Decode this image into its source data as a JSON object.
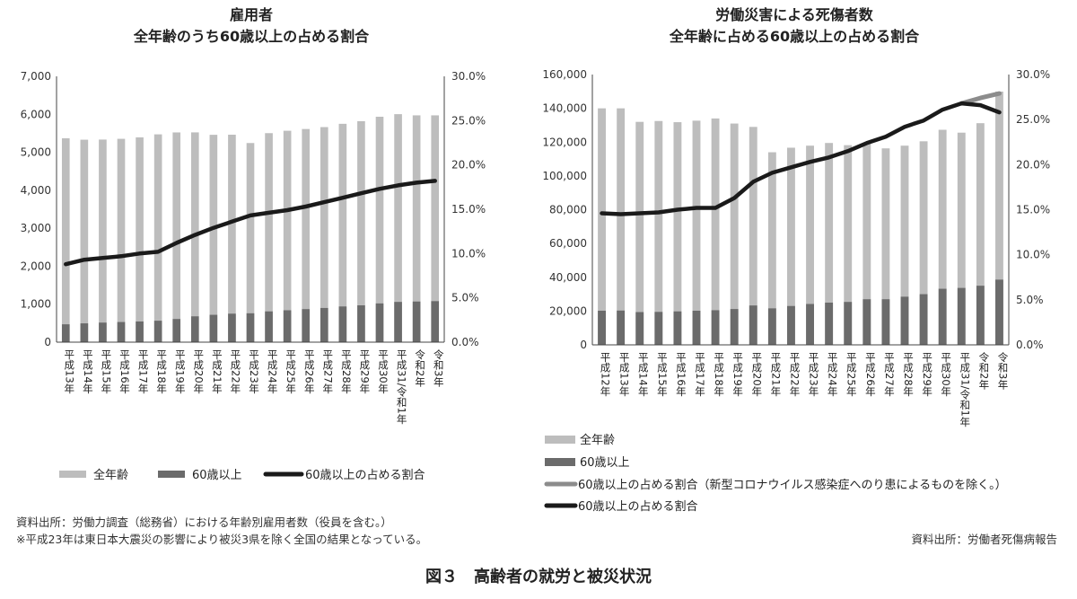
{
  "chart_data": [
    {
      "type": "bar",
      "title": "雇用者",
      "subtitle": "全年齢のうち60歳以上の占める割合",
      "categories": [
        "平成13年",
        "平成14年",
        "平成15年",
        "平成16年",
        "平成17年",
        "平成18年",
        "平成19年",
        "平成20年",
        "平成21年",
        "平成22年",
        "平成23年",
        "平成24年",
        "平成25年",
        "平成26年",
        "平成27年",
        "平成28年",
        "平成29年",
        "平成30年",
        "平成31/令和1年",
        "令和2年",
        "令和3年"
      ],
      "left_ylim": [
        0,
        7000
      ],
      "left_ticks": [
        "0",
        "1,000",
        "2,000",
        "3,000",
        "4,000",
        "5,000",
        "6,000",
        "7,000"
      ],
      "right_ylim": [
        0,
        30
      ],
      "right_ticks": [
        "0.0%",
        "5.0%",
        "10.0%",
        "15.0%",
        "20.0%",
        "25.0%",
        "30.0%"
      ],
      "series": [
        {
          "name": "全年齢",
          "kind": "bar",
          "color": "#bdbdbd",
          "values": [
            5369,
            5331,
            5335,
            5355,
            5393,
            5472,
            5523,
            5524,
            5460,
            5463,
            5244,
            5504,
            5567,
            5613,
            5663,
            5750,
            5819,
            5936,
            6004,
            5973,
            5973
          ]
        },
        {
          "name": "60歳以上",
          "kind": "bar",
          "color": "#6b6b6b",
          "values": [
            470,
            495,
            515,
            530,
            545,
            565,
            610,
            680,
            720,
            750,
            760,
            810,
            840,
            870,
            900,
            940,
            970,
            1020,
            1060,
            1070,
            1080
          ]
        },
        {
          "name": "60歳以上の占める割合",
          "kind": "line",
          "axis": "right",
          "color": "#1a1a1a",
          "values": [
            8.8,
            9.3,
            9.5,
            9.7,
            10.0,
            10.2,
            11.2,
            12.1,
            12.9,
            13.6,
            14.3,
            14.6,
            14.9,
            15.3,
            15.8,
            16.3,
            16.8,
            17.3,
            17.7,
            18.0,
            18.2
          ]
        }
      ],
      "legend": [
        "全年齢",
        "60歳以上",
        "60歳以上の占める割合"
      ],
      "source": "資料出所：労働力調査（総務省）における年齢別雇用者数（役員を含む。）",
      "footnote": "※平成23年は東日本大震災の影響により被災3県を除く全国の結果となっている。"
    },
    {
      "type": "bar",
      "title": "労働災害による死傷者数",
      "subtitle": "全年齢に占める60歳以上の占める割合",
      "categories": [
        "平成12年",
        "平成13年",
        "平成14年",
        "平成15年",
        "平成16年",
        "平成17年",
        "平成18年",
        "平成19年",
        "平成20年",
        "平成21年",
        "平成22年",
        "平成23年",
        "平成24年",
        "平成25年",
        "平成26年",
        "平成27年",
        "平成28年",
        "平成29年",
        "平成30年",
        "平成31/令和1年",
        "令和2年",
        "令和3年"
      ],
      "left_ylim": [
        0,
        160000
      ],
      "left_ticks": [
        "0",
        "20,000",
        "40,000",
        "60,000",
        "80,000",
        "100,000",
        "120,000",
        "140,000",
        "160,000"
      ],
      "right_ylim": [
        0,
        30
      ],
      "right_ticks": [
        "0.0%",
        "5.0%",
        "10.0%",
        "15.0%",
        "20.0%",
        "25.0%",
        "30.0%"
      ],
      "series": [
        {
          "name": "全年齢",
          "kind": "bar",
          "color": "#bdbdbd",
          "values": [
            140000,
            140000,
            132000,
            132500,
            131800,
            132700,
            134000,
            131000,
            129000,
            114000,
            116700,
            117900,
            119500,
            118200,
            119500,
            116300,
            117900,
            120500,
            127300,
            125600,
            131200,
            149900
          ]
        },
        {
          "name": "60歳以上",
          "kind": "bar",
          "color": "#6b6b6b",
          "values": [
            20200,
            20300,
            19400,
            19500,
            19800,
            20200,
            20500,
            21200,
            23300,
            21600,
            23000,
            24200,
            25000,
            25400,
            27000,
            27000,
            28500,
            30000,
            33200,
            33700,
            35000,
            38600
          ]
        },
        {
          "name": "60歳以上の占める割合（新型コロナウイルス感染症へのり患によるものを除く。）",
          "kind": "line",
          "axis": "right",
          "color": "#8c8c8c",
          "values": [
            null,
            null,
            null,
            null,
            null,
            null,
            null,
            null,
            null,
            null,
            null,
            null,
            null,
            null,
            null,
            null,
            null,
            null,
            null,
            26.8,
            27.4,
            27.9
          ]
        },
        {
          "name": "60歳以上の占める割合",
          "kind": "line",
          "axis": "right",
          "color": "#1a1a1a",
          "values": [
            14.6,
            14.5,
            14.6,
            14.7,
            15.0,
            15.2,
            15.2,
            16.3,
            18.1,
            19.1,
            19.7,
            20.3,
            20.8,
            21.5,
            22.4,
            23.1,
            24.2,
            24.9,
            26.1,
            26.8,
            26.6,
            25.8
          ]
        }
      ],
      "legend": [
        "全年齢",
        "60歳以上",
        "60歳以上の占める割合（新型コロナウイルス感染症へのり患によるものを除く。）",
        "60歳以上の占める割合"
      ],
      "source": "資料出所：労働者死傷病報告"
    }
  ],
  "figure_caption": "図３　高齢者の就労と被災状況"
}
